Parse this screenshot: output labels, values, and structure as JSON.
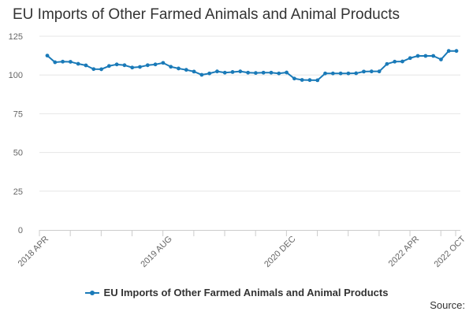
{
  "chart_data": {
    "type": "line",
    "title": "EU Imports of Other Farmed Animals and Animal Products",
    "xlabel": "",
    "ylabel": "",
    "ylim": [
      0,
      125
    ],
    "y_ticks": [
      0,
      25,
      50,
      75,
      100,
      125
    ],
    "x_tick_labels": [
      {
        "label": "2018 APR",
        "index": 0
      },
      {
        "label": "2019 AUG",
        "index": 16
      },
      {
        "label": "2020 DEC",
        "index": 32
      },
      {
        "label": "2022 APR",
        "index": 48
      },
      {
        "label": "2022 OCT",
        "index": 54
      }
    ],
    "grid": true,
    "legend_position": "bottom",
    "series": [
      {
        "name": "EU Imports of Other Farmed Animals and Animal Products",
        "color": "#1a7ab8",
        "values": [
          112.5,
          108.2,
          108.6,
          108.5,
          107.2,
          106.2,
          103.8,
          103.7,
          105.8,
          106.8,
          106.3,
          104.8,
          105.2,
          106.3,
          106.8,
          107.8,
          105.3,
          104.2,
          103.3,
          102.2,
          100.1,
          101.0,
          102.3,
          101.5,
          101.9,
          102.3,
          101.5,
          101.3,
          101.5,
          101.5,
          101.0,
          101.6,
          97.7,
          96.8,
          96.7,
          96.6,
          101.0,
          101.0,
          101.0,
          101.0,
          101.1,
          102.2,
          102.3,
          102.3,
          107.1,
          108.6,
          108.7,
          110.9,
          112.3,
          112.3,
          112.3,
          110.0,
          115.5,
          115.5
        ]
      }
    ]
  },
  "legend": {
    "label": "EU Imports of Other Farmed Animals and Animal Products"
  },
  "source": {
    "label": "Source:"
  }
}
